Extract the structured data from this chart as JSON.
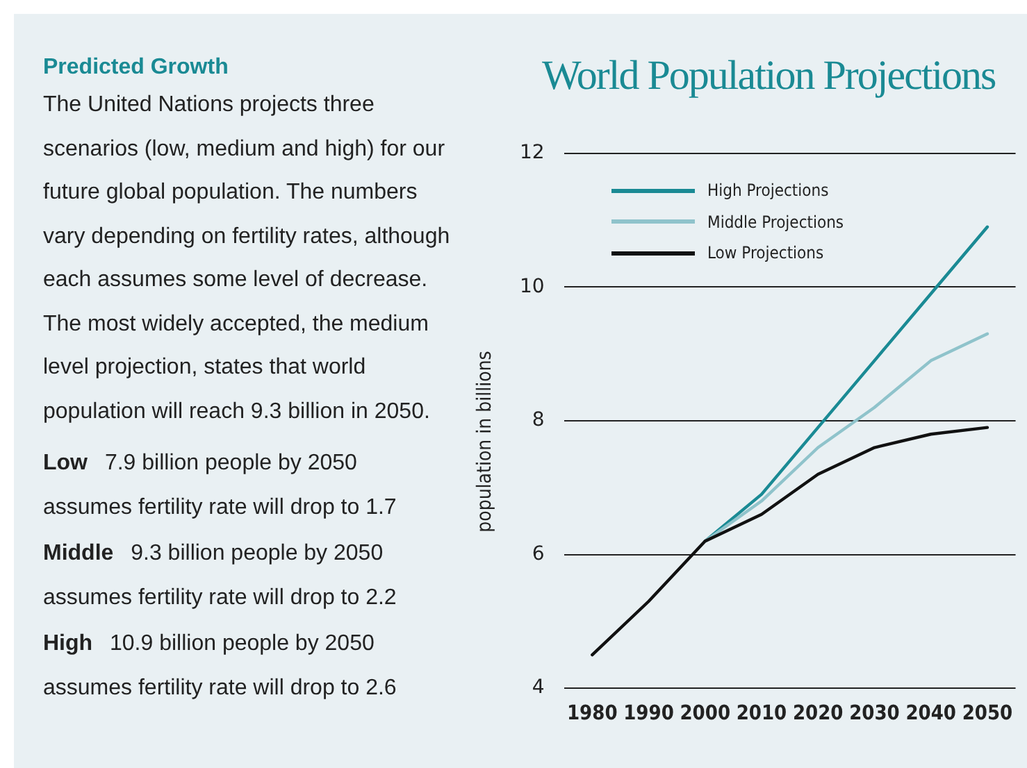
{
  "chart_data": {
    "type": "line",
    "title": "World Population Projections",
    "ylabel": "population in billions",
    "categories": [
      "1980",
      "1990",
      "2000",
      "2010",
      "2020",
      "2030",
      "2040",
      "2050"
    ],
    "series": [
      {
        "name": "High Projections",
        "color": "#1a8a94",
        "values": [
          null,
          null,
          6.2,
          6.9,
          7.9,
          8.9,
          9.9,
          10.9
        ]
      },
      {
        "name": "Middle Projections",
        "color": "#8fc3cb",
        "values": [
          null,
          null,
          6.2,
          6.8,
          7.6,
          8.2,
          8.9,
          9.3
        ]
      },
      {
        "name": "Low Projections",
        "color": "#111111",
        "values": [
          4.5,
          5.3,
          6.2,
          6.6,
          7.2,
          7.6,
          7.8,
          7.9
        ]
      }
    ],
    "ylim": [
      4,
      12
    ],
    "yticks": [
      4,
      6,
      8,
      10,
      12
    ],
    "grid": "y",
    "legend": "top left",
    "marker": "none",
    "line_style": "solid",
    "annotations": [
      "Predicted Growth",
      "The United Nations projects three scenarios (low, medium and high) for our future global population. The numbers vary depending on fertility rates, although each assumes some level of decrease. The most widely accepted, the medium level projection, states that world population will reach 9.3 billion in 2050.",
      "Low 7.9 billion people by 2050 assumes fertility rate will drop to 1.7",
      "Middle 9.3 billion people by 2050 assumes fertility rate will drop to 2.2",
      "High 10.9 billion people by 2050 assumes fertility rate will drop to 2.6"
    ]
  }
}
